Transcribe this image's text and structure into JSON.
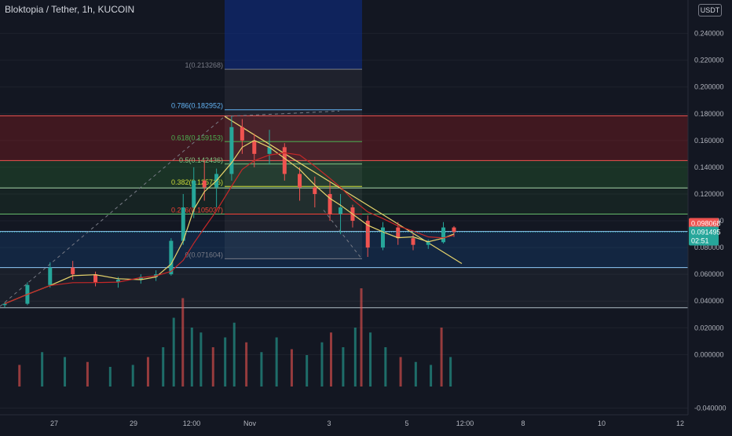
{
  "header": {
    "title": "Bloktopia / Tether, 1h, KUCOIN",
    "currency": "USDT"
  },
  "price_labels": {
    "high_line": "0.098068",
    "current": "0.091495",
    "countdown": "02:51"
  },
  "colors": {
    "background": "#131722",
    "up": "#26a69a",
    "down": "#ef5350",
    "ma_fast": "#e6d36b",
    "ma_slow": "#c62828",
    "current_price": "#26a69a",
    "high_price": "#ef5350"
  },
  "chart_data": {
    "type": "candlestick",
    "y_axis": {
      "ticks": [
        "0.240000",
        "0.220000",
        "0.200000",
        "0.180000",
        "0.160000",
        "0.140000",
        "0.120000",
        "0.100000",
        "0.080000",
        "0.060000",
        "0.040000",
        "0.020000",
        "0.000000",
        "-0.040000"
      ],
      "range": [
        -0.045,
        0.265
      ]
    },
    "x_axis": {
      "ticks": [
        "27",
        "29",
        "12:00",
        "Nov",
        "3",
        "5",
        "12:00",
        "8",
        "10",
        "12"
      ]
    },
    "fibonacci": [
      {
        "label": "1(0.213268)",
        "value": 0.213268,
        "color": "#787b86"
      },
      {
        "label": "0.786(0.182952)",
        "value": 0.182952,
        "color": "#64b5f6"
      },
      {
        "label": "0.618(0.159153)",
        "value": 0.159153,
        "color": "#4caf50"
      },
      {
        "label": "0.5(0.142436)",
        "value": 0.142436,
        "color": "#81c784"
      },
      {
        "label": "0.382(0.125716)",
        "value": 0.125716,
        "color": "#cddc39"
      },
      {
        "label": "0.236(0.105037)",
        "value": 0.105037,
        "color": "#f44336"
      },
      {
        "label": "0(0.071604)",
        "value": 0.071604,
        "color": "#787b86"
      }
    ],
    "price_series": [
      {
        "x": 0,
        "open": 0.037,
        "high": 0.039,
        "low": 0.035,
        "close": 0.038
      },
      {
        "x": 15,
        "open": 0.038,
        "high": 0.054,
        "low": 0.037,
        "close": 0.052
      },
      {
        "x": 30,
        "open": 0.052,
        "high": 0.069,
        "low": 0.05,
        "close": 0.065
      },
      {
        "x": 45,
        "open": 0.065,
        "high": 0.07,
        "low": 0.056,
        "close": 0.06
      },
      {
        "x": 60,
        "open": 0.06,
        "high": 0.062,
        "low": 0.051,
        "close": 0.054
      },
      {
        "x": 75,
        "open": 0.054,
        "high": 0.058,
        "low": 0.05,
        "close": 0.056
      },
      {
        "x": 90,
        "open": 0.056,
        "high": 0.06,
        "low": 0.053,
        "close": 0.058
      },
      {
        "x": 100,
        "open": 0.058,
        "high": 0.063,
        "low": 0.055,
        "close": 0.06
      },
      {
        "x": 110,
        "open": 0.06,
        "high": 0.087,
        "low": 0.059,
        "close": 0.085
      },
      {
        "x": 118,
        "open": 0.085,
        "high": 0.12,
        "low": 0.082,
        "close": 0.11
      },
      {
        "x": 125,
        "open": 0.11,
        "high": 0.14,
        "low": 0.102,
        "close": 0.13
      },
      {
        "x": 132,
        "open": 0.13,
        "high": 0.145,
        "low": 0.115,
        "close": 0.125
      },
      {
        "x": 140,
        "open": 0.125,
        "high": 0.139,
        "low": 0.11,
        "close": 0.135
      },
      {
        "x": 150,
        "open": 0.135,
        "high": 0.178,
        "low": 0.13,
        "close": 0.17
      },
      {
        "x": 157,
        "open": 0.17,
        "high": 0.176,
        "low": 0.15,
        "close": 0.16
      },
      {
        "x": 165,
        "open": 0.16,
        "high": 0.165,
        "low": 0.14,
        "close": 0.15
      },
      {
        "x": 175,
        "open": 0.15,
        "high": 0.168,
        "low": 0.142,
        "close": 0.155
      },
      {
        "x": 185,
        "open": 0.155,
        "high": 0.158,
        "low": 0.13,
        "close": 0.135
      },
      {
        "x": 195,
        "open": 0.135,
        "high": 0.14,
        "low": 0.115,
        "close": 0.125
      },
      {
        "x": 205,
        "open": 0.125,
        "high": 0.133,
        "low": 0.11,
        "close": 0.12
      },
      {
        "x": 215,
        "open": 0.12,
        "high": 0.13,
        "low": 0.1,
        "close": 0.105
      },
      {
        "x": 222,
        "open": 0.105,
        "high": 0.12,
        "low": 0.09,
        "close": 0.11
      },
      {
        "x": 230,
        "open": 0.11,
        "high": 0.112,
        "low": 0.095,
        "close": 0.1
      },
      {
        "x": 240,
        "open": 0.1,
        "high": 0.104,
        "low": 0.073,
        "close": 0.08
      },
      {
        "x": 250,
        "open": 0.08,
        "high": 0.099,
        "low": 0.078,
        "close": 0.095
      },
      {
        "x": 260,
        "open": 0.095,
        "high": 0.099,
        "low": 0.082,
        "close": 0.087
      },
      {
        "x": 270,
        "open": 0.087,
        "high": 0.09,
        "low": 0.078,
        "close": 0.082
      },
      {
        "x": 280,
        "open": 0.082,
        "high": 0.086,
        "low": 0.079,
        "close": 0.084
      },
      {
        "x": 290,
        "open": 0.084,
        "high": 0.099,
        "low": 0.083,
        "close": 0.095
      },
      {
        "x": 297,
        "open": 0.095,
        "high": 0.096,
        "low": 0.088,
        "close": 0.0915
      }
    ],
    "volume_series": [
      {
        "x": 10,
        "v": 0.22
      },
      {
        "x": 25,
        "v": 0.35
      },
      {
        "x": 40,
        "v": 0.3
      },
      {
        "x": 55,
        "v": 0.25
      },
      {
        "x": 70,
        "v": 0.2
      },
      {
        "x": 85,
        "v": 0.22
      },
      {
        "x": 95,
        "v": 0.3
      },
      {
        "x": 105,
        "v": 0.4
      },
      {
        "x": 112,
        "v": 0.7
      },
      {
        "x": 118,
        "v": 0.9
      },
      {
        "x": 124,
        "v": 0.6
      },
      {
        "x": 130,
        "v": 0.55
      },
      {
        "x": 138,
        "v": 0.4
      },
      {
        "x": 146,
        "v": 0.5
      },
      {
        "x": 152,
        "v": 0.65
      },
      {
        "x": 160,
        "v": 0.45
      },
      {
        "x": 170,
        "v": 0.35
      },
      {
        "x": 180,
        "v": 0.5
      },
      {
        "x": 190,
        "v": 0.38
      },
      {
        "x": 200,
        "v": 0.32
      },
      {
        "x": 210,
        "v": 0.45
      },
      {
        "x": 216,
        "v": 0.55
      },
      {
        "x": 224,
        "v": 0.4
      },
      {
        "x": 232,
        "v": 0.6
      },
      {
        "x": 236,
        "v": 1.0
      },
      {
        "x": 242,
        "v": 0.55
      },
      {
        "x": 252,
        "v": 0.4
      },
      {
        "x": 262,
        "v": 0.3
      },
      {
        "x": 272,
        "v": 0.25
      },
      {
        "x": 282,
        "v": 0.22
      },
      {
        "x": 289,
        "v": 0.6
      },
      {
        "x": 295,
        "v": 0.3
      }
    ]
  }
}
